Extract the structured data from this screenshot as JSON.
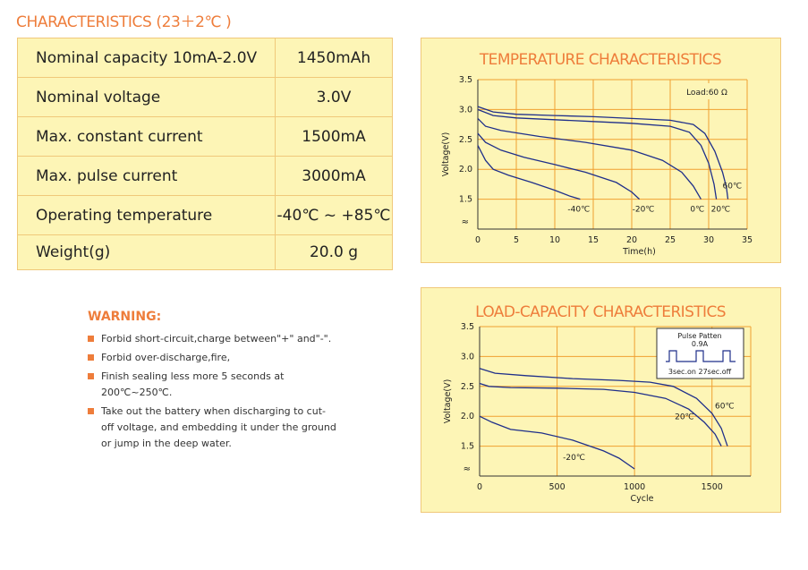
{
  "heading": "CHARACTERISTICS (23＋2℃ )",
  "spec_table": [
    {
      "key": "Nominal capacity 10mA-2.0V",
      "value": "1450mAh"
    },
    {
      "key": "Nominal voltage",
      "value": "3.0V"
    },
    {
      "key": "Max. constant current",
      "value": "1500mA"
    },
    {
      "key": "Max. pulse current",
      "value": "3000mA"
    },
    {
      "key": "Operating temperature",
      "value": "-40℃ ~ +85℃"
    },
    {
      "key": "Weight(g)",
      "value": "20.0 g"
    }
  ],
  "warning": {
    "title": "WARNING:",
    "items": [
      "Forbid short-circuit,charge between\"+\" and\"-\".",
      "Forbid over-discharge,fire,",
      "Finish sealing less more 5 seconds at 200℃~250℃.",
      "Take out the battery when discharging to cut-off voltage, and embedding it under the ground  or jump in the deep water."
    ]
  },
  "colors": {
    "accent": "#ee7d3b",
    "panel_bg": "#fdf5b6",
    "panel_border": "#f0c87a",
    "curve": "#1f2f8a",
    "grid": "#f0a030"
  },
  "chart_data": [
    {
      "type": "line",
      "title": "TEMPERATURE CHARACTERISTICS",
      "xlabel": "Time(h)",
      "ylabel": "Voltage(V)",
      "xlim": [
        0,
        35
      ],
      "ylim": [
        1.0,
        3.5
      ],
      "xticks": [
        "0",
        "5",
        "10",
        "15",
        "20",
        "25",
        "30",
        "35"
      ],
      "yticks": [
        "1.5",
        "2.0",
        "2.5",
        "3.0",
        "3.5"
      ],
      "grid": true,
      "annotation": "Load:60 Ω",
      "break_symbol": "≈",
      "series": [
        {
          "name": "-40℃",
          "points": [
            [
              0,
              2.4
            ],
            [
              1,
              2.15
            ],
            [
              2,
              2.0
            ],
            [
              4,
              1.9
            ],
            [
              7,
              1.78
            ],
            [
              10,
              1.65
            ],
            [
              12,
              1.55
            ],
            [
              13.3,
              1.5
            ]
          ]
        },
        {
          "name": "-20℃",
          "points": [
            [
              0,
              2.6
            ],
            [
              1,
              2.45
            ],
            [
              3,
              2.32
            ],
            [
              6,
              2.2
            ],
            [
              10,
              2.08
            ],
            [
              14,
              1.95
            ],
            [
              18,
              1.78
            ],
            [
              20,
              1.62
            ],
            [
              21,
              1.5
            ]
          ]
        },
        {
          "name": "0℃",
          "points": [
            [
              0,
              2.85
            ],
            [
              1,
              2.72
            ],
            [
              3,
              2.65
            ],
            [
              8,
              2.55
            ],
            [
              14,
              2.45
            ],
            [
              20,
              2.32
            ],
            [
              24,
              2.15
            ],
            [
              26.5,
              1.95
            ],
            [
              28,
              1.72
            ],
            [
              29,
              1.5
            ]
          ]
        },
        {
          "name": "20℃",
          "points": [
            [
              0,
              3.0
            ],
            [
              2,
              2.9
            ],
            [
              5,
              2.86
            ],
            [
              10,
              2.83
            ],
            [
              15,
              2.8
            ],
            [
              20,
              2.77
            ],
            [
              25,
              2.72
            ],
            [
              27.5,
              2.62
            ],
            [
              29,
              2.4
            ],
            [
              30,
              2.1
            ],
            [
              30.7,
              1.75
            ],
            [
              31,
              1.5
            ]
          ]
        },
        {
          "name": "60℃",
          "points": [
            [
              0,
              3.05
            ],
            [
              2,
              2.96
            ],
            [
              5,
              2.92
            ],
            [
              10,
              2.9
            ],
            [
              15,
              2.88
            ],
            [
              20,
              2.85
            ],
            [
              25,
              2.82
            ],
            [
              28,
              2.75
            ],
            [
              29.5,
              2.6
            ],
            [
              30.8,
              2.3
            ],
            [
              31.8,
              1.95
            ],
            [
              32.3,
              1.7
            ],
            [
              32.5,
              1.5
            ]
          ]
        }
      ]
    },
    {
      "type": "line",
      "title": "LOAD-CAPACITY CHARACTERISTICS",
      "xlabel": "Cycle",
      "ylabel": "Voltage(V)",
      "xlim": [
        0,
        1750
      ],
      "ylim": [
        1.0,
        3.5
      ],
      "xticks": [
        "0",
        "500",
        "1000",
        "1500"
      ],
      "yticks": [
        "1.5",
        "2.0",
        "2.5",
        "3.0",
        "3.5"
      ],
      "grid": true,
      "break_symbol": "≈",
      "inset": {
        "title": "Pulse Patten",
        "current": "0.9A",
        "timing": "3sec.on 27sec.off"
      },
      "series": [
        {
          "name": "-20℃",
          "points": [
            [
              0,
              2.0
            ],
            [
              80,
              1.9
            ],
            [
              200,
              1.78
            ],
            [
              400,
              1.72
            ],
            [
              600,
              1.6
            ],
            [
              800,
              1.42
            ],
            [
              900,
              1.3
            ],
            [
              1000,
              1.12
            ]
          ]
        },
        {
          "name": "20℃",
          "points": [
            [
              0,
              2.55
            ],
            [
              60,
              2.5
            ],
            [
              200,
              2.48
            ],
            [
              500,
              2.47
            ],
            [
              800,
              2.45
            ],
            [
              1000,
              2.4
            ],
            [
              1200,
              2.3
            ],
            [
              1350,
              2.12
            ],
            [
              1450,
              1.9
            ],
            [
              1520,
              1.7
            ],
            [
              1560,
              1.5
            ]
          ]
        },
        {
          "name": "60℃",
          "points": [
            [
              0,
              2.8
            ],
            [
              100,
              2.72
            ],
            [
              300,
              2.68
            ],
            [
              600,
              2.63
            ],
            [
              900,
              2.6
            ],
            [
              1100,
              2.57
            ],
            [
              1250,
              2.5
            ],
            [
              1400,
              2.3
            ],
            [
              1500,
              2.05
            ],
            [
              1560,
              1.8
            ],
            [
              1600,
              1.5
            ]
          ]
        }
      ]
    }
  ]
}
